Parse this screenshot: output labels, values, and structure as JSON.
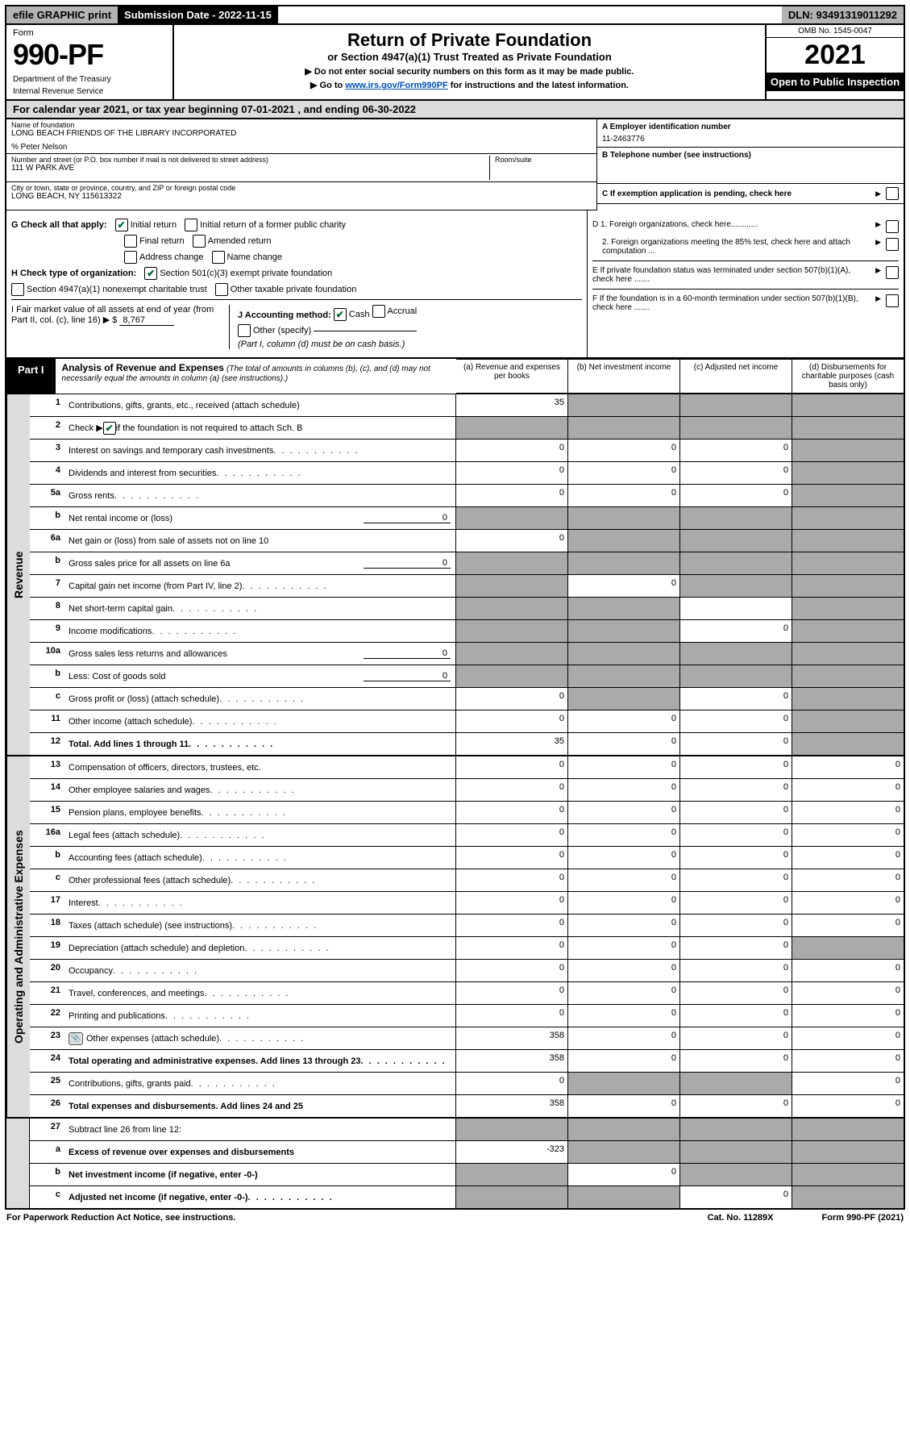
{
  "topbar": {
    "efile": "efile GRAPHIC print",
    "submission": "Submission Date - 2022-11-15",
    "dln": "DLN: 93491319011292"
  },
  "header": {
    "form_label": "Form",
    "form_number": "990-PF",
    "dept1": "Department of the Treasury",
    "dept2": "Internal Revenue Service",
    "title": "Return of Private Foundation",
    "subtitle": "or Section 4947(a)(1) Trust Treated as Private Foundation",
    "note1": "▶ Do not enter social security numbers on this form as it may be made public.",
    "note2_pre": "▶ Go to ",
    "note2_link": "www.irs.gov/Form990PF",
    "note2_post": " for instructions and the latest information.",
    "omb": "OMB No. 1545-0047",
    "year": "2021",
    "open": "Open to Public Inspection"
  },
  "calendar": {
    "text_pre": "For calendar year 2021, or tax year beginning ",
    "begin": "07-01-2021",
    "text_mid": " , and ending ",
    "end": "06-30-2022"
  },
  "entity": {
    "name_lbl": "Name of foundation",
    "name": "LONG BEACH FRIENDS OF THE LIBRARY INCORPORATED",
    "care_of": "% Peter Nelson",
    "addr_lbl": "Number and street (or P.O. box number if mail is not delivered to street address)",
    "addr": "111 W PARK AVE",
    "room_lbl": "Room/suite",
    "city_lbl": "City or town, state or province, country, and ZIP or foreign postal code",
    "city": "LONG BEACH, NY  115613322",
    "ein_lbl": "A Employer identification number",
    "ein": "11-2463776",
    "phone_lbl": "B Telephone number (see instructions)",
    "c_lbl": "C If exemption application is pending, check here",
    "d1": "D 1. Foreign organizations, check here............",
    "d2": "2. Foreign organizations meeting the 85% test, check here and attach computation ...",
    "e_lbl": "E  If private foundation status was terminated under section 507(b)(1)(A), check here .......",
    "f_lbl": "F  If the foundation is in a 60-month termination under section 507(b)(1)(B), check here .......",
    "g_lbl": "G Check all that apply:",
    "g_initial": "Initial return",
    "g_initial_former": "Initial return of a former public charity",
    "g_final": "Final return",
    "g_amended": "Amended return",
    "g_addr": "Address change",
    "g_name": "Name change",
    "h_lbl": "H Check type of organization:",
    "h_501c3": "Section 501(c)(3) exempt private foundation",
    "h_4947": "Section 4947(a)(1) nonexempt charitable trust",
    "h_other_tax": "Other taxable private foundation",
    "i_lbl": "I Fair market value of all assets at end of year (from Part II, col. (c), line 16)  ▶ $",
    "i_val": "8,767",
    "j_lbl": "J Accounting method:",
    "j_cash": "Cash",
    "j_accrual": "Accrual",
    "j_other": "Other (specify)",
    "j_note": "(Part I, column (d) must be on cash basis.)"
  },
  "part1": {
    "label": "Part I",
    "title": "Analysis of Revenue and Expenses",
    "title_note": " (The total of amounts in columns (b), (c), and (d) may not necessarily equal the amounts in column (a) (see instructions).)",
    "col_a": "(a)  Revenue and expenses per books",
    "col_b": "(b)  Net investment income",
    "col_c": "(c)  Adjusted net income",
    "col_d": "(d)  Disbursements for charitable purposes (cash basis only)",
    "side_revenue": "Revenue",
    "side_expenses": "Operating and Administrative Expenses"
  },
  "rows": {
    "r1": {
      "n": "1",
      "d": "Contributions, gifts, grants, etc., received (attach schedule)",
      "a": "35"
    },
    "r2": {
      "n": "2",
      "d_pre": "Check ▶ ",
      "d_post": " if the foundation is not required to attach Sch. B"
    },
    "r3": {
      "n": "3",
      "d": "Interest on savings and temporary cash investments",
      "a": "0",
      "b": "0",
      "c": "0"
    },
    "r4": {
      "n": "4",
      "d": "Dividends and interest from securities",
      "a": "0",
      "b": "0",
      "c": "0"
    },
    "r5a": {
      "n": "5a",
      "d": "Gross rents",
      "a": "0",
      "b": "0",
      "c": "0"
    },
    "r5b": {
      "n": "b",
      "d": "Net rental income or (loss)",
      "inline": "0"
    },
    "r6a": {
      "n": "6a",
      "d": "Net gain or (loss) from sale of assets not on line 10",
      "a": "0"
    },
    "r6b": {
      "n": "b",
      "d": "Gross sales price for all assets on line 6a",
      "inline": "0"
    },
    "r7": {
      "n": "7",
      "d": "Capital gain net income (from Part IV, line 2)",
      "b": "0"
    },
    "r8": {
      "n": "8",
      "d": "Net short-term capital gain"
    },
    "r9": {
      "n": "9",
      "d": "Income modifications",
      "c": "0"
    },
    "r10a": {
      "n": "10a",
      "d": "Gross sales less returns and allowances",
      "inline": "0"
    },
    "r10b": {
      "n": "b",
      "d": "Less: Cost of goods sold",
      "inline": "0"
    },
    "r10c": {
      "n": "c",
      "d": "Gross profit or (loss) (attach schedule)",
      "a": "0",
      "c": "0"
    },
    "r11": {
      "n": "11",
      "d": "Other income (attach schedule)",
      "a": "0",
      "b": "0",
      "c": "0"
    },
    "r12": {
      "n": "12",
      "d": "Total. Add lines 1 through 11",
      "a": "35",
      "b": "0",
      "c": "0"
    },
    "r13": {
      "n": "13",
      "d": "Compensation of officers, directors, trustees, etc.",
      "a": "0",
      "b": "0",
      "c": "0",
      "dd": "0"
    },
    "r14": {
      "n": "14",
      "d": "Other employee salaries and wages",
      "a": "0",
      "b": "0",
      "c": "0",
      "dd": "0"
    },
    "r15": {
      "n": "15",
      "d": "Pension plans, employee benefits",
      "a": "0",
      "b": "0",
      "c": "0",
      "dd": "0"
    },
    "r16a": {
      "n": "16a",
      "d": "Legal fees (attach schedule)",
      "a": "0",
      "b": "0",
      "c": "0",
      "dd": "0"
    },
    "r16b": {
      "n": "b",
      "d": "Accounting fees (attach schedule)",
      "a": "0",
      "b": "0",
      "c": "0",
      "dd": "0"
    },
    "r16c": {
      "n": "c",
      "d": "Other professional fees (attach schedule)",
      "a": "0",
      "b": "0",
      "c": "0",
      "dd": "0"
    },
    "r17": {
      "n": "17",
      "d": "Interest",
      "a": "0",
      "b": "0",
      "c": "0",
      "dd": "0"
    },
    "r18": {
      "n": "18",
      "d": "Taxes (attach schedule) (see instructions)",
      "a": "0",
      "b": "0",
      "c": "0",
      "dd": "0"
    },
    "r19": {
      "n": "19",
      "d": "Depreciation (attach schedule) and depletion",
      "a": "0",
      "b": "0",
      "c": "0"
    },
    "r20": {
      "n": "20",
      "d": "Occupancy",
      "a": "0",
      "b": "0",
      "c": "0",
      "dd": "0"
    },
    "r21": {
      "n": "21",
      "d": "Travel, conferences, and meetings",
      "a": "0",
      "b": "0",
      "c": "0",
      "dd": "0"
    },
    "r22": {
      "n": "22",
      "d": "Printing and publications",
      "a": "0",
      "b": "0",
      "c": "0",
      "dd": "0"
    },
    "r23": {
      "n": "23",
      "d": "Other expenses (attach schedule)",
      "a": "358",
      "b": "0",
      "c": "0",
      "dd": "0",
      "icon": true
    },
    "r24": {
      "n": "24",
      "d": "Total operating and administrative expenses. Add lines 13 through 23",
      "a": "358",
      "b": "0",
      "c": "0",
      "dd": "0"
    },
    "r25": {
      "n": "25",
      "d": "Contributions, gifts, grants paid",
      "a": "0",
      "dd": "0"
    },
    "r26": {
      "n": "26",
      "d": "Total expenses and disbursements. Add lines 24 and 25",
      "a": "358",
      "b": "0",
      "c": "0",
      "dd": "0"
    },
    "r27": {
      "n": "27",
      "d": "Subtract line 26 from line 12:"
    },
    "r27a": {
      "n": "a",
      "d": "Excess of revenue over expenses and disbursements",
      "a": "-323"
    },
    "r27b": {
      "n": "b",
      "d": "Net investment income (if negative, enter -0-)",
      "b": "0"
    },
    "r27c": {
      "n": "c",
      "d": "Adjusted net income (if negative, enter -0-)",
      "c": "0"
    }
  },
  "footer": {
    "left": "For Paperwork Reduction Act Notice, see instructions.",
    "mid": "Cat. No. 11289X",
    "right": "Form 990-PF (2021)"
  },
  "colors": {
    "bg_grey": "#dcdcdc",
    "bg_cell_grey": "#aaaaaa",
    "link": "#0050b3",
    "check_green": "#006633"
  }
}
